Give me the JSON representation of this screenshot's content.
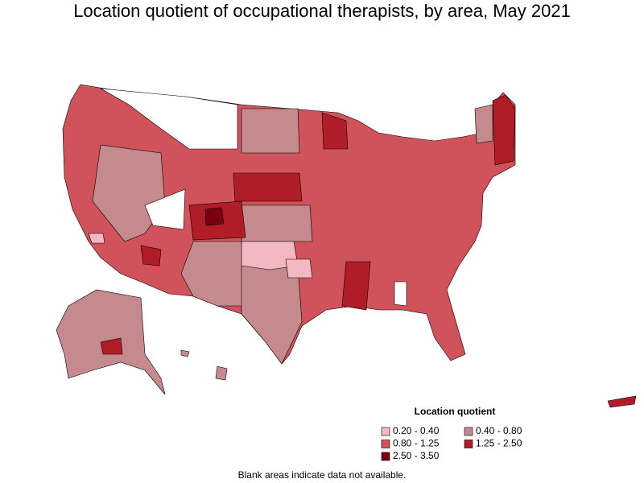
{
  "title": "Location quotient of occupational therapists, by area, May 2021",
  "legend": {
    "title": "Location quotient",
    "items": [
      {
        "label": "0.20 - 0.40",
        "color": "#f5b7c1"
      },
      {
        "label": "0.40 - 0.80",
        "color": "#c48a8e"
      },
      {
        "label": "0.80 - 1.25",
        "color": "#d0525b"
      },
      {
        "label": "1.25 - 2.50",
        "color": "#b01d27"
      },
      {
        "label": "2.50 - 3.50",
        "color": "#780010"
      }
    ]
  },
  "footnote": "Blank areas indicate data not available."
}
